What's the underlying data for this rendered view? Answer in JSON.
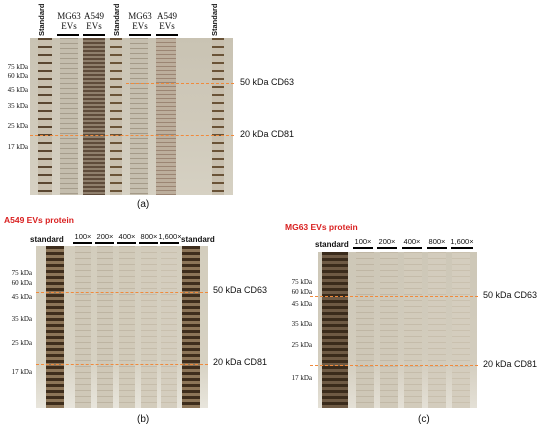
{
  "panel_a": {
    "caption": "(a)",
    "lane_headers": [
      {
        "text": "Standard"
      },
      {
        "text": "MG63 EVs"
      },
      {
        "text": "A549 EVs"
      },
      {
        "text": "Standard"
      },
      {
        "text": "MG63 EVs"
      },
      {
        "text": "A549 EVs"
      },
      {
        "text": "Standard"
      }
    ],
    "mw_markers": [
      "75 kDa",
      "60 kDa",
      "45 kDa",
      "35 kDa",
      "25 kDa",
      "17 kDa"
    ],
    "annotations": [
      "50 kDa CD63",
      "20 kDa CD81"
    ]
  },
  "panel_b": {
    "caption": "(b)",
    "title": "A549 EVs protein",
    "lane_headers": [
      "standard",
      "100×",
      "200×",
      "400×",
      "800×",
      "1,600×",
      "standard"
    ],
    "mw_markers": [
      "75 kDa",
      "60 kDa",
      "45 kDa",
      "35 kDa",
      "25 kDa",
      "17 kDa"
    ],
    "annotations": [
      "50 kDa CD63",
      "20 kDa CD81"
    ]
  },
  "panel_c": {
    "caption": "(c)",
    "title": "MG63 EVs protein",
    "lane_headers": [
      "standard",
      "100×",
      "200×",
      "400×",
      "800×",
      "1,600×"
    ],
    "mw_markers": [
      "75 kDa",
      "60 kDa",
      "45 kDa",
      "35 kDa",
      "25 kDa",
      "17 kDa"
    ],
    "annotations": [
      "50 kDa CD63",
      "20 kDa CD81"
    ]
  },
  "colors": {
    "dash": "#f08a3c",
    "title_red": "#d92020"
  }
}
